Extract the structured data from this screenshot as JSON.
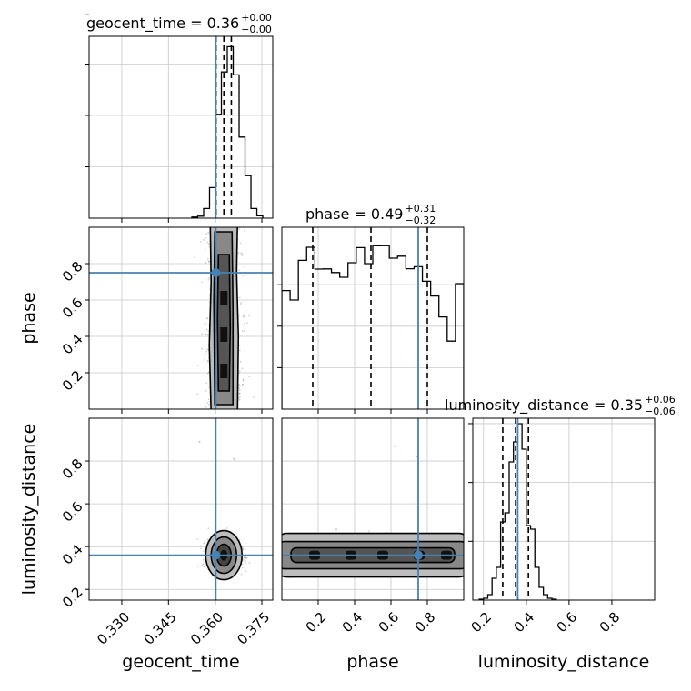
{
  "chart_data": {
    "type": "corner",
    "parameters": [
      "geocent_time",
      "phase",
      "luminosity_distance"
    ],
    "truth": {
      "geocent_time": 0.3602,
      "phase": 0.75,
      "luminosity_distance": 0.36
    },
    "titles": [
      {
        "param": "geocent_time",
        "text": "geocent_time = 0.36",
        "plus": "+0.00",
        "minus": "−0.00",
        "quantiles": [
          0.3603,
          0.3628,
          0.3652
        ]
      },
      {
        "param": "phase",
        "text": "phase = 0.49",
        "plus": "+0.31",
        "minus": "−0.32",
        "quantiles": [
          0.17,
          0.49,
          0.8
        ]
      },
      {
        "param": "luminosity_distance",
        "text": "luminosity_distance = 0.35",
        "plus": "+0.06",
        "minus": "−0.06",
        "quantiles": [
          0.29,
          0.35,
          0.41
        ]
      }
    ],
    "histograms": [
      {
        "param": "geocent_time",
        "xlim": [
          0.3195,
          0.3785
        ],
        "bin_edges_start": 0.3525,
        "bin_width": 0.0019,
        "counts": [
          0.006,
          0.011,
          0.053,
          0.168,
          0.571,
          0.804,
          0.943,
          0.788,
          0.446,
          0.234,
          0.053,
          0.013
        ]
      },
      {
        "param": "phase",
        "xlim": [
          0.0,
          1.0
        ],
        "bin_edges_start": 0.0,
        "bin_width": 0.05,
        "counts": [
          0.652,
          0.6,
          0.818,
          0.89,
          0.77,
          0.771,
          0.751,
          0.725,
          0.805,
          0.888,
          0.8,
          0.898,
          0.899,
          0.83,
          0.841,
          0.772,
          0.783,
          0.703,
          0.622,
          0.507,
          0.374,
          0.69
        ]
      },
      {
        "param": "luminosity_distance",
        "xlim": [
          0.15,
          1.0
        ],
        "bin_edges_start": 0.15,
        "bin_width": 0.02,
        "counts": [
          0.0,
          0.0,
          0.0,
          0.0,
          0.0,
          0.0,
          0.0,
          0.0,
          0.0,
          0.0,
          0.0,
          0.0
        ]
      }
    ],
    "ld_hist": {
      "x": [
        0.19,
        0.21,
        0.23,
        0.25,
        0.27,
        0.29,
        0.31,
        0.33,
        0.35,
        0.37,
        0.39,
        0.41,
        0.43,
        0.45,
        0.47,
        0.49,
        0.51,
        0.53
      ],
      "counts": [
        0.005,
        0.01,
        0.03,
        0.12,
        0.18,
        0.43,
        0.48,
        0.76,
        0.87,
        0.97,
        0.83,
        0.41,
        0.39,
        0.18,
        0.07,
        0.03,
        0.01,
        0.005
      ]
    },
    "panels_2d": [
      {
        "x": "geocent_time",
        "y": "phase",
        "xlim": [
          0.3195,
          0.3785
        ],
        "ylim": [
          0.0,
          1.0
        ]
      },
      {
        "x": "geocent_time",
        "y": "luminosity_distance",
        "xlim": [
          0.3195,
          0.3785
        ],
        "ylim": [
          0.15,
          1.0
        ]
      },
      {
        "x": "phase",
        "y": "luminosity_distance",
        "xlim": [
          0.0,
          1.0
        ],
        "ylim": [
          0.15,
          1.0
        ]
      }
    ],
    "ticks": {
      "geocent_time": [
        "0.330",
        "0.345",
        "0.360",
        "0.375"
      ],
      "phase": [
        "0.2",
        "0.4",
        "0.6",
        "0.8"
      ],
      "luminosity_distance": [
        "0.2",
        "0.4",
        "0.6",
        "0.8"
      ]
    },
    "xlabels": [
      "geocent_time",
      "phase",
      "luminosity_distance"
    ],
    "ylabels": [
      "phase",
      "luminosity_distance"
    ],
    "truth_color": "#4682b4",
    "grid": true
  }
}
